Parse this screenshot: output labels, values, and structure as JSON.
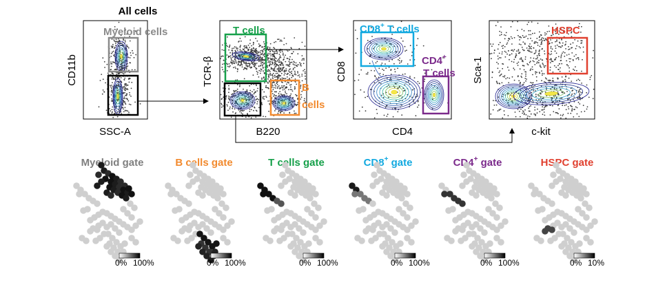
{
  "header": {
    "title": "All cells"
  },
  "colors": {
    "myeloid": "#7f7f7f",
    "bcells": "#f28a2e",
    "tcells": "#16a04a",
    "cd8": "#12a9e0",
    "cd4": "#7b2a8b",
    "hspc": "#e0402f",
    "gate_black": "#000000",
    "tree_node": "#cfcfcf",
    "dot_cloud": "#3a3a3a"
  },
  "panels": [
    {
      "id": "p1",
      "xlabel": "SSC-A",
      "ylabel": "CD11b",
      "gates": [
        {
          "key": "myeloid",
          "label": "Myeloid cells",
          "color": "#8a8a8a"
        },
        {
          "key": "black",
          "label": "",
          "color": "#000000"
        }
      ]
    },
    {
      "id": "p2",
      "xlabel": "B220",
      "ylabel": "TCR-β",
      "gates": [
        {
          "key": "tcells",
          "label": "T cells",
          "color": "#16a04a"
        },
        {
          "key": "bcells",
          "label_line1": "B",
          "label_line2": "cells",
          "color": "#f28a2e"
        },
        {
          "key": "black",
          "label": "",
          "color": "#000000"
        }
      ]
    },
    {
      "id": "p3",
      "xlabel": "CD4",
      "ylabel": "CD8",
      "gates": [
        {
          "key": "cd8",
          "label_main": "CD8",
          "label_sup": "+",
          "label_rest": " T cells",
          "color": "#12a9e0"
        },
        {
          "key": "cd4",
          "label_main": "CD4",
          "label_sup": "+",
          "label_line2": "T cells",
          "color": "#7b2a8b"
        }
      ]
    },
    {
      "id": "p4",
      "xlabel": "c-kit",
      "ylabel": "Sca-1",
      "gates": [
        {
          "key": "hspc",
          "label": "HSPC",
          "color": "#e0402f"
        }
      ]
    }
  ],
  "trees": [
    {
      "title_main": "Myeloid gate",
      "title_sup": "",
      "title_rest": "",
      "color": "#7f7f7f",
      "scale_min": "0%",
      "scale_max": "100%",
      "focus": "myeloid"
    },
    {
      "title_main": "B cells gate",
      "title_sup": "",
      "title_rest": "",
      "color": "#f28a2e",
      "scale_min": "0%",
      "scale_max": "100%",
      "focus": "bcells"
    },
    {
      "title_main": "T cells gate",
      "title_sup": "",
      "title_rest": "",
      "color": "#16a04a",
      "scale_min": "0%",
      "scale_max": "100%",
      "focus": "tcells"
    },
    {
      "title_main": "CD8",
      "title_sup": "+",
      "title_rest": " gate",
      "color": "#12a9e0",
      "scale_min": "0%",
      "scale_max": "100%",
      "focus": "cd8"
    },
    {
      "title_main": "CD4",
      "title_sup": "+",
      "title_rest": " gate",
      "color": "#7b2a8b",
      "scale_min": "0%",
      "scale_max": "100%",
      "focus": "cd4"
    },
    {
      "title_main": "HSPC gate",
      "title_sup": "",
      "title_rest": "",
      "color": "#e0402f",
      "scale_min": "0%",
      "scale_max": "10%",
      "focus": "hspc"
    }
  ]
}
